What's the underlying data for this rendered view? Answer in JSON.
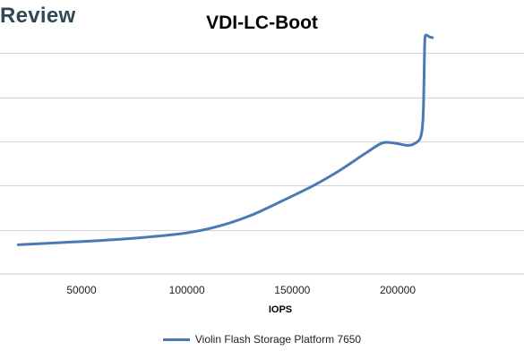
{
  "header": {
    "brand": "Review"
  },
  "chart_data": {
    "type": "line",
    "title": "VDI-LC-Boot",
    "xlabel": "IOPS",
    "ylabel": "",
    "xlim": [
      20000,
      217000
    ],
    "ylim": [
      0,
      6
    ],
    "x_ticks": [
      50000,
      100000,
      150000,
      200000
    ],
    "y_gridlines": [
      1,
      2,
      3,
      4,
      5
    ],
    "grid": true,
    "legend_position": "bottom",
    "series": [
      {
        "name": "Violin Flash Storage Platform 7650",
        "color": "#4a7ab5",
        "points": [
          [
            20000,
            0.66
          ],
          [
            40000,
            0.71
          ],
          [
            60000,
            0.76
          ],
          [
            80000,
            0.83
          ],
          [
            100000,
            0.93
          ],
          [
            115000,
            1.08
          ],
          [
            130000,
            1.32
          ],
          [
            145000,
            1.65
          ],
          [
            160000,
            2.0
          ],
          [
            172000,
            2.33
          ],
          [
            185000,
            2.74
          ],
          [
            193000,
            2.97
          ],
          [
            200000,
            2.95
          ],
          [
            205000,
            2.91
          ],
          [
            209000,
            2.98
          ],
          [
            211000,
            3.12
          ],
          [
            212000,
            3.5
          ],
          [
            212400,
            4.2
          ],
          [
            212700,
            5.0
          ],
          [
            213000,
            5.37
          ],
          [
            214000,
            5.4
          ],
          [
            215000,
            5.37
          ],
          [
            216500,
            5.35
          ]
        ]
      }
    ]
  }
}
